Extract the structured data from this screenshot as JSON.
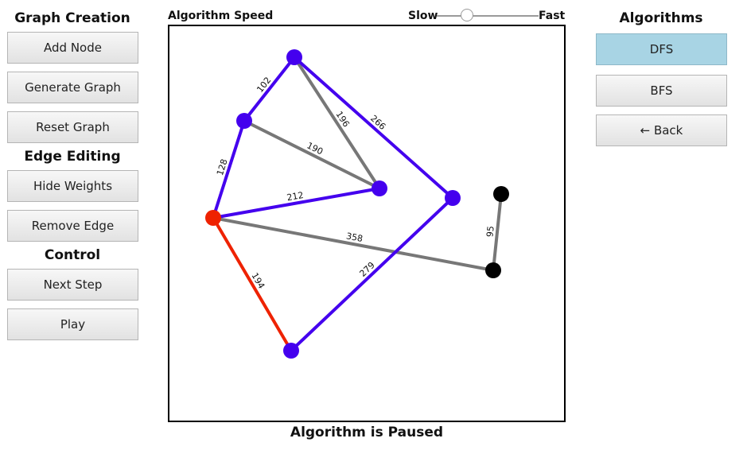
{
  "left_panel": {
    "graph_creation_heading": "Graph Creation",
    "add_node_label": "Add Node",
    "generate_graph_label": "Generate Graph",
    "reset_graph_label": "Reset Graph",
    "edge_editing_heading": "Edge Editing",
    "hide_weights_label": "Hide Weights",
    "remove_edge_label": "Remove Edge",
    "control_heading": "Control",
    "next_step_label": "Next Step",
    "play_label": "Play"
  },
  "speed": {
    "label": "Algorithm Speed",
    "slow_label": "Slow",
    "fast_label": "Fast",
    "value": 0.3
  },
  "right_panel": {
    "algorithms_heading": "Algorithms",
    "dfs_label": "DFS",
    "bfs_label": "BFS",
    "back_label": "← Back",
    "selected": "DFS"
  },
  "status_text": "Algorithm is Paused",
  "colors": {
    "visited": "#4400ee",
    "current": "#ee2200",
    "unvisited_node": "#000000",
    "unvisited_edge": "#777777",
    "selected_button": "#a8d4e4"
  },
  "graph": {
    "edges": [
      {
        "weight": "102",
        "state": "visited"
      },
      {
        "weight": "196",
        "state": "unvisited"
      },
      {
        "weight": "266",
        "state": "visited"
      },
      {
        "weight": "190",
        "state": "unvisited"
      },
      {
        "weight": "128",
        "state": "visited"
      },
      {
        "weight": "212",
        "state": "visited"
      },
      {
        "weight": "358",
        "state": "unvisited"
      },
      {
        "weight": "194",
        "state": "current"
      },
      {
        "weight": "279",
        "state": "visited"
      },
      {
        "weight": "95",
        "state": "unvisited"
      }
    ],
    "nodes": [
      {
        "state": "visited"
      },
      {
        "state": "visited"
      },
      {
        "state": "visited"
      },
      {
        "state": "visited"
      },
      {
        "state": "current"
      },
      {
        "state": "visited"
      },
      {
        "state": "unvisited"
      },
      {
        "state": "unvisited"
      }
    ]
  }
}
